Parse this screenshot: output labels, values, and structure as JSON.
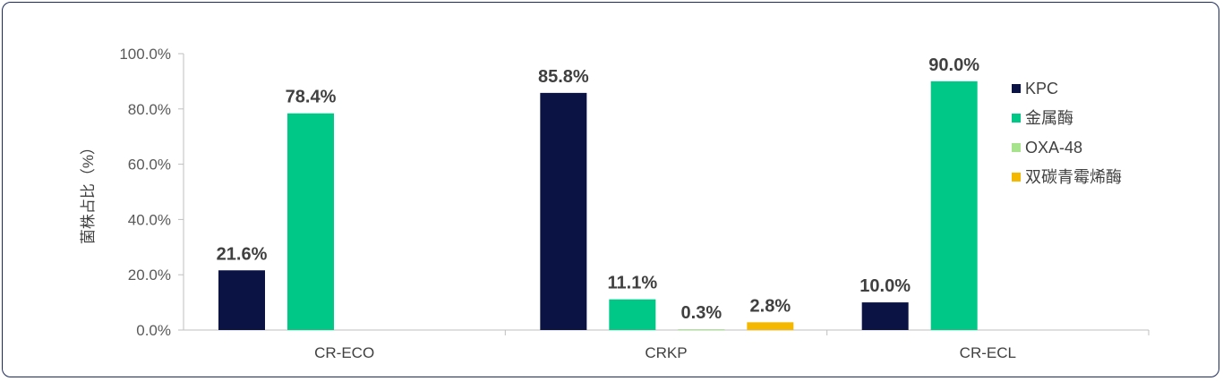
{
  "chart_data": {
    "type": "bar",
    "categories": [
      "CR-ECO",
      "CRKP",
      "CR-ECL"
    ],
    "ylabel": "菌株占比（%）",
    "xlabel": "",
    "ylim": [
      0,
      100
    ],
    "yticks": [
      "0.0%",
      "20.0%",
      "40.0%",
      "60.0%",
      "80.0%",
      "100.0%"
    ],
    "grid": false,
    "legend_position": "right",
    "series": [
      {
        "name": "KPC",
        "color": "#0b1344",
        "values": [
          21.6,
          85.8,
          10.0
        ],
        "labels": [
          "21.6%",
          "85.8%",
          "10.0%"
        ]
      },
      {
        "name": "金属酶",
        "color": "#00c887",
        "values": [
          78.4,
          11.1,
          90.0
        ],
        "labels": [
          "78.4%",
          "11.1%",
          "90.0%"
        ]
      },
      {
        "name": "OXA-48",
        "color": "#a6e38c",
        "values": [
          null,
          0.3,
          null
        ],
        "labels": [
          "",
          "0.3%",
          ""
        ]
      },
      {
        "name": "双碳青霉烯酶",
        "color": "#f5b800",
        "values": [
          null,
          2.8,
          null
        ],
        "labels": [
          "",
          "2.8%",
          ""
        ]
      }
    ]
  }
}
